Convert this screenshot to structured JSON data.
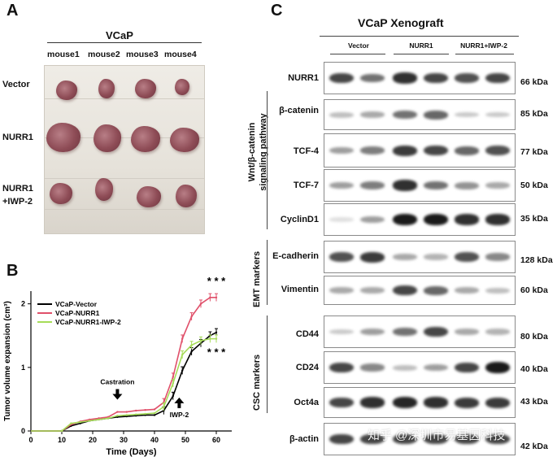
{
  "panels": {
    "a": "A",
    "b": "B",
    "c": "C"
  },
  "panel_a": {
    "title": "VCaP",
    "mice": [
      "mouse1",
      "mouse2",
      "mouse3",
      "mouse4"
    ],
    "rows": [
      "Vector",
      "NURR1",
      "NURR1\n+IWP-2"
    ]
  },
  "panel_c": {
    "title": "VCaP Xenograft",
    "groups": [
      "Vector",
      "NURR1",
      "NURR1+IWP-2"
    ],
    "pathway_labels": {
      "wnt": "Wnt/β-catenin\nsignaling pathway",
      "emt": "EMT markers",
      "csc": "CSC markers"
    },
    "proteins": [
      {
        "name": "NURR1",
        "kda": "66 kDa",
        "intensity": [
          0.75,
          0.55,
          0.85,
          0.75,
          0.7,
          0.75
        ]
      },
      {
        "name": "β-catenin",
        "kda": "85 kDa",
        "intensity": [
          0.2,
          0.3,
          0.55,
          0.6,
          0.15,
          0.15
        ]
      },
      {
        "name": "TCF-4",
        "kda": "77 kDa",
        "intensity": [
          0.35,
          0.5,
          0.8,
          0.75,
          0.6,
          0.7
        ]
      },
      {
        "name": "TCF-7",
        "kda": "50 kDa",
        "intensity": [
          0.35,
          0.5,
          0.85,
          0.55,
          0.4,
          0.3
        ]
      },
      {
        "name": "CyclinD1",
        "kda": "35 kDa",
        "intensity": [
          0.05,
          0.35,
          0.95,
          0.95,
          0.85,
          0.85
        ]
      },
      {
        "name": "E-cadherin",
        "kda": "128 kDa",
        "intensity": [
          0.7,
          0.8,
          0.3,
          0.25,
          0.7,
          0.45
        ]
      },
      {
        "name": "Vimentin",
        "kda": "60 kDa",
        "intensity": [
          0.3,
          0.3,
          0.75,
          0.6,
          0.3,
          0.2
        ]
      },
      {
        "name": "CD44",
        "kda": "80 kDa",
        "intensity": [
          0.15,
          0.35,
          0.55,
          0.75,
          0.3,
          0.25
        ]
      },
      {
        "name": "CD24",
        "kda": "40 kDa",
        "intensity": [
          0.75,
          0.45,
          0.2,
          0.35,
          0.75,
          0.95
        ]
      },
      {
        "name": "Oct4a",
        "kda": "43 kDa",
        "intensity": [
          0.75,
          0.85,
          0.9,
          0.85,
          0.8,
          0.8
        ]
      },
      {
        "name": "β-actin",
        "kda": "42 kDa",
        "intensity": [
          0.75,
          0.75,
          0.75,
          0.75,
          0.75,
          0.75
        ]
      }
    ]
  },
  "watermark": "知乎 @深圳市易基因科技",
  "chart_data": {
    "type": "line",
    "title": "",
    "xlabel": "Time (Days)",
    "ylabel": "Tumor volume expansion (cm³)",
    "xlim": [
      0,
      65
    ],
    "ylim": [
      0,
      2.2
    ],
    "xticks": [
      0,
      10,
      20,
      30,
      40,
      50,
      60
    ],
    "yticks": [
      0,
      1,
      2
    ],
    "colors": {
      "VCaP-Vector": "#000000",
      "VCaP-NURR1": "#e0506a",
      "VCaP-NURR1-IWP-2": "#a6dc58"
    },
    "series": [
      {
        "name": "VCaP-Vector",
        "x": [
          0,
          10,
          13,
          16,
          19,
          22,
          25,
          28,
          31,
          34,
          37,
          40,
          43,
          46,
          49,
          52,
          55,
          58,
          60
        ],
        "y": [
          0,
          0,
          0.08,
          0.12,
          0.16,
          0.18,
          0.2,
          0.22,
          0.23,
          0.24,
          0.25,
          0.25,
          0.32,
          0.55,
          0.95,
          1.25,
          1.38,
          1.5,
          1.55
        ]
      },
      {
        "name": "VCaP-NURR1",
        "x": [
          0,
          10,
          13,
          16,
          19,
          22,
          25,
          28,
          31,
          34,
          37,
          40,
          43,
          46,
          49,
          52,
          55,
          58,
          60
        ],
        "y": [
          0,
          0,
          0.1,
          0.15,
          0.18,
          0.2,
          0.22,
          0.3,
          0.3,
          0.32,
          0.33,
          0.34,
          0.45,
          0.85,
          1.45,
          1.8,
          2.0,
          2.1,
          2.1
        ]
      },
      {
        "name": "VCaP-NURR1-IWP-2",
        "x": [
          0,
          10,
          13,
          16,
          19,
          22,
          25,
          28,
          31,
          34,
          37,
          40,
          43,
          46,
          49,
          52,
          55,
          58,
          60
        ],
        "y": [
          0,
          0,
          0.12,
          0.14,
          0.16,
          0.18,
          0.2,
          0.24,
          0.25,
          0.26,
          0.27,
          0.28,
          0.38,
          0.75,
          1.2,
          1.35,
          1.42,
          1.45,
          1.45
        ]
      }
    ],
    "annotations": [
      {
        "text": "Castration",
        "x": 28,
        "y": 0.48
      },
      {
        "text": "IWP-2",
        "x": 48,
        "y": 0.45
      },
      {
        "text": "* * *",
        "x": 60,
        "y": 2.3
      },
      {
        "text": "* * *",
        "x": 60,
        "y": 1.18
      }
    ]
  }
}
